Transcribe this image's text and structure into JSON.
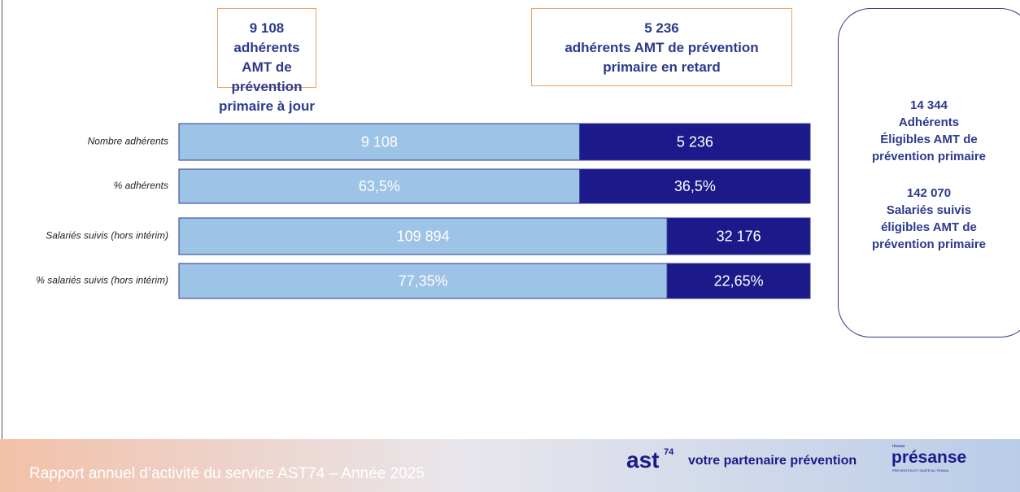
{
  "chart_data": {
    "type": "bar",
    "orientation": "horizontal",
    "stacked": true,
    "categories": [
      "Nombre adhérents",
      "% adhérents",
      "Salariés suivis (hors intérim)",
      "% salariés suivis (hors intérim)"
    ],
    "series": [
      {
        "color": "#9dc3e6",
        "values": [
          9108,
          63.5,
          109894,
          77.35
        ],
        "value_labels": [
          "9 108",
          "63,5%",
          "109 894",
          "77,35%"
        ]
      },
      {
        "color": "#1c1a8a",
        "values": [
          5236,
          36.5,
          32176,
          22.65
        ],
        "value_labels": [
          "5 236",
          "36,5%",
          "32 176",
          "22,65%"
        ]
      }
    ],
    "boxes": [
      {
        "lines": [
          "9 108",
          "adhérents AMT de",
          "prévention primaire  à jour"
        ]
      },
      {
        "lines": [
          "5 236",
          "adhérents AMT de prévention",
          "primaire en retard"
        ]
      }
    ],
    "side_panel": [
      {
        "lines": [
          "14 344",
          "Adhérents",
          "Éligibles AMT de",
          "prévention primaire"
        ]
      },
      {
        "lines": [
          "142 070",
          "Salariés suivis",
          "éligibles AMT de",
          "prévention primaire"
        ]
      }
    ]
  },
  "footer": {
    "text": "Rapport annuel d’activité du service AST74 – Année 2025",
    "logo": "ast",
    "logo_sup": "74",
    "tagline": "votre partenaire prévention",
    "partner_small": "réseau",
    "partner": "présanse",
    "partner_sub": "PRÉVENTION ET SANTÉ AU TRAVAIL"
  }
}
